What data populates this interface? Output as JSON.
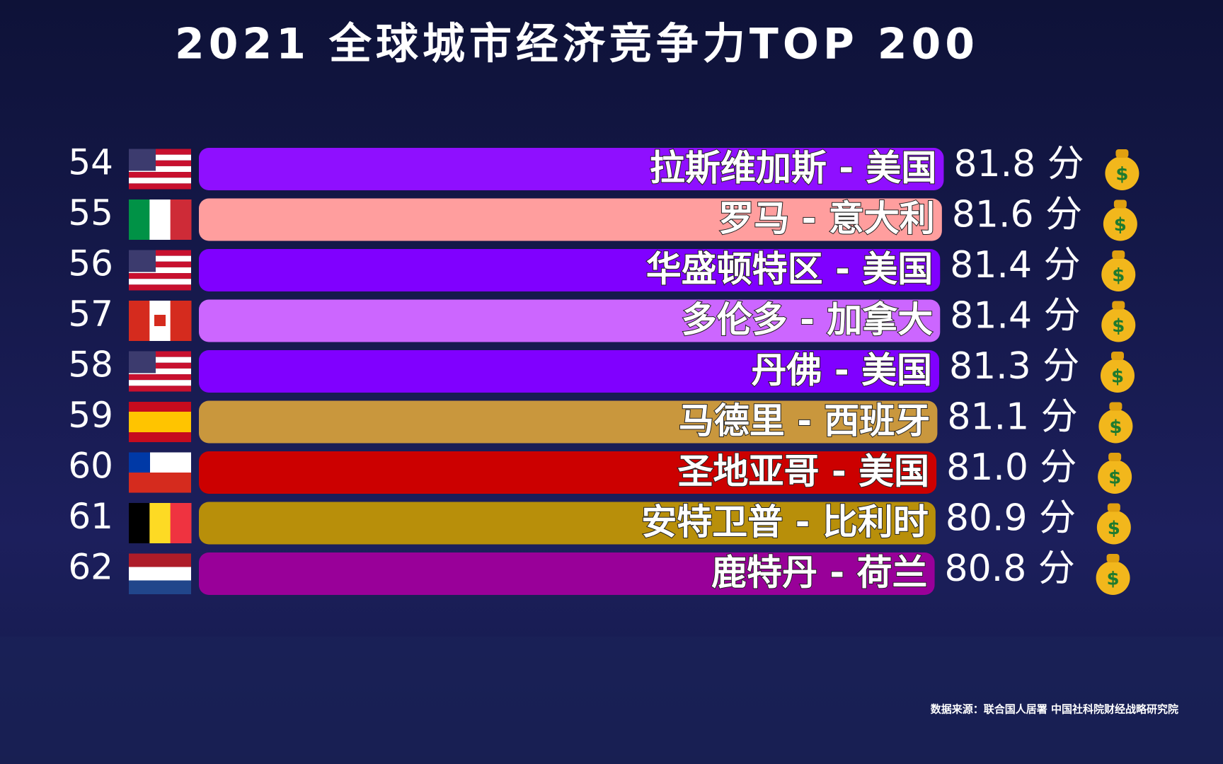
{
  "chart_data": {
    "type": "bar",
    "orientation": "horizontal",
    "title": "2021 全球城市经济竞争力TOP 200",
    "ranks": [
      54,
      55,
      56,
      57,
      58,
      59,
      60,
      61,
      62
    ],
    "categories": [
      "拉斯维加斯 - 美国",
      "罗马 - 意大利",
      "华盛顿特区 - 美国",
      "多伦多 - 加拿大",
      "丹佛 - 美国",
      "马德里 - 西班牙",
      "圣地亚哥 - 美国",
      "安特卫普 - 比利时",
      "鹿特丹 - 荷兰"
    ],
    "values": [
      81.8,
      81.6,
      81.4,
      81.4,
      81.3,
      81.1,
      81.0,
      80.9,
      80.8
    ],
    "value_labels": [
      "81.8 分",
      "81.6 分",
      "81.4 分",
      "81.4 分",
      "81.3 分",
      "81.1 分",
      "81.0 分",
      "80.9 分",
      "80.8 分"
    ],
    "colors": [
      "#8f0fff",
      "#ff9e9e",
      "#8000ff",
      "#cc66ff",
      "#8000ff",
      "#c9973d",
      "#cc0000",
      "#b88f0a",
      "#990099"
    ],
    "xlim": [
      0,
      82
    ],
    "source": "数据来源：联合国人居署 中国社科院财经战略研究院"
  }
}
